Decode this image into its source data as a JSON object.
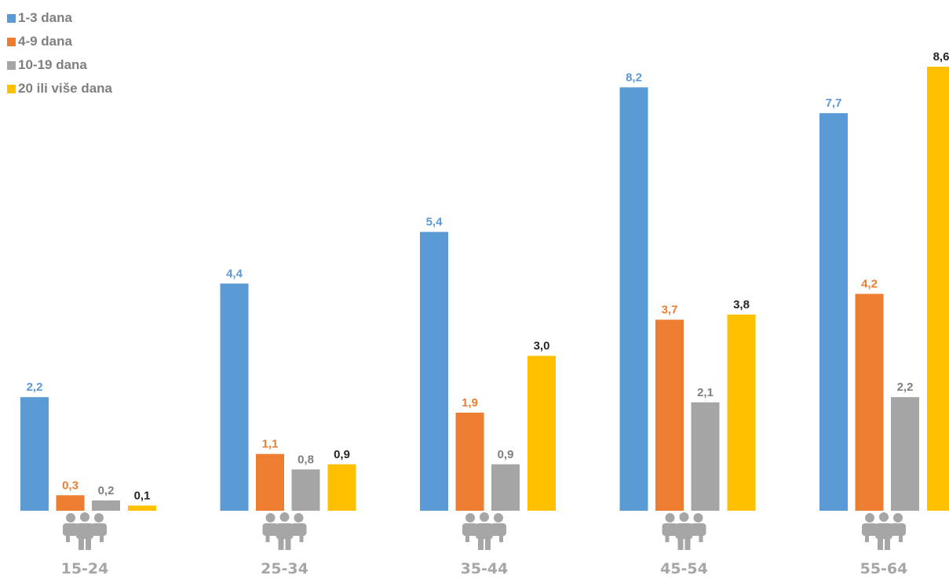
{
  "chart_data": {
    "type": "bar",
    "categories": [
      "15-24",
      "25-34",
      "35-44",
      "45-54",
      "55-64"
    ],
    "series": [
      {
        "name": "1-3 dana",
        "color": "#5b9bd5",
        "label_color": "#5b9bd5",
        "values": [
          2.2,
          4.4,
          5.4,
          8.2,
          7.7
        ]
      },
      {
        "name": "4-9 dana",
        "color": "#ed7d31",
        "label_color": "#ed7d31",
        "values": [
          0.3,
          1.1,
          1.9,
          3.7,
          4.2
        ]
      },
      {
        "name": "10-19 dana",
        "color": "#a5a5a5",
        "label_color": "#7f7f7f",
        "values": [
          0.2,
          0.8,
          0.9,
          2.1,
          2.2
        ]
      },
      {
        "name": "20 ili više dana",
        "color": "#ffc000",
        "label_color": "#262626",
        "values": [
          0.1,
          0.9,
          3.0,
          3.8,
          8.6
        ]
      }
    ],
    "data_labels": [
      [
        "2,2",
        "4,4",
        "5,4",
        "8,2",
        "7,7"
      ],
      [
        "0,3",
        "1,1",
        "1,9",
        "3,7",
        "4,2"
      ],
      [
        "0,2",
        "0,8",
        "0,9",
        "2,1",
        "2,2"
      ],
      [
        "0,1",
        "0,9",
        "3,0",
        "3,8",
        "8,6"
      ]
    ],
    "ylim": [
      0,
      8.6
    ],
    "legend_position": "top-left",
    "category_icon": "people-group-icon",
    "category_label_color": "#a6a6a6",
    "icon_color": "#a6a6a6",
    "grid": false
  }
}
